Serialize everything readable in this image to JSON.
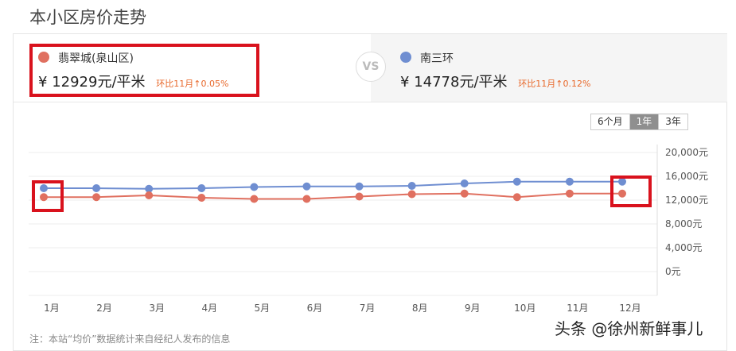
{
  "page_title": "本小区房价走势",
  "compare": {
    "left": {
      "name": "翡翠城(泉山区)",
      "currency": "¥",
      "price": "12929元/平米",
      "trend": "环比11月↑0.05%",
      "color": "#e07060"
    },
    "vs": "VS",
    "right": {
      "name": "南三环",
      "currency": "¥",
      "price": "14778元/平米",
      "trend": "环比11月↑0.12%",
      "color": "#6f8ed1"
    }
  },
  "range_tabs": [
    {
      "label": "6个月",
      "active": false
    },
    {
      "label": "1年",
      "active": true
    },
    {
      "label": "3年",
      "active": false
    }
  ],
  "chart_data": {
    "type": "line",
    "categories": [
      "1月",
      "2月",
      "3月",
      "4月",
      "5月",
      "6月",
      "7月",
      "8月",
      "9月",
      "10月",
      "11月",
      "12月"
    ],
    "y_ticks": [
      "20,000元",
      "16,000元",
      "12,000元",
      "8,000元",
      "4,000元",
      "0元"
    ],
    "ylim": [
      0,
      20000
    ],
    "grid": true,
    "series": [
      {
        "name": "南三环",
        "color": "#6f8ed1",
        "values": [
          14000,
          14000,
          13900,
          14000,
          14200,
          14300,
          14300,
          14400,
          14800,
          15100,
          15100,
          15100
        ]
      },
      {
        "name": "翡翠城(泉山区)",
        "color": "#e07060",
        "values": [
          12500,
          12500,
          12800,
          12400,
          12200,
          12200,
          12600,
          13000,
          13100,
          12500,
          13100,
          13100
        ]
      }
    ]
  },
  "footnote": "注：本站“均价”数据统计来自经纪人发布的信息",
  "watermark": "头条 @徐州新鲜事儿"
}
